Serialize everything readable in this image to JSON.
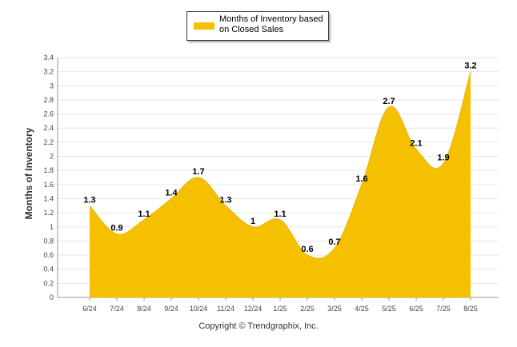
{
  "chart_data": {
    "type": "area",
    "categories": [
      "6/24",
      "7/24",
      "8/24",
      "9/24",
      "10/24",
      "11/24",
      "12/24",
      "1/25",
      "2/25",
      "3/25",
      "4/25",
      "5/25",
      "6/25",
      "7/25",
      "8/25"
    ],
    "series": [
      {
        "name": "Months of Inventory based on Closed Sales",
        "values": [
          1.3,
          0.9,
          1.1,
          1.4,
          1.7,
          1.3,
          1,
          1.1,
          0.6,
          0.7,
          1.6,
          2.7,
          2.1,
          1.9,
          3.2
        ],
        "labels": [
          "1.3",
          "0.9",
          "1.1",
          "1.4",
          "1.7",
          "1.3",
          "1",
          "1.1",
          "0.6",
          "0.7",
          "1.6",
          "2.7",
          "2.1",
          "1.9",
          "3.2"
        ],
        "color": "#F5C000"
      }
    ],
    "ylabel": "Months of Inventory",
    "ylim": [
      0,
      3.4
    ],
    "yticks": [
      "0",
      "0.2",
      "0.4",
      "0.6",
      "0.8",
      "1",
      "1.2",
      "1.4",
      "1.6",
      "1.8",
      "2",
      "2.2",
      "2.4",
      "2.6",
      "2.8",
      "3",
      "3.2",
      "3.4"
    ],
    "grid": true,
    "legend_position": "top-center"
  },
  "legend": {
    "label": "Months of Inventory based on Closed Sales"
  },
  "footer": {
    "copyright": "Copyright © Trendgraphix, Inc."
  }
}
